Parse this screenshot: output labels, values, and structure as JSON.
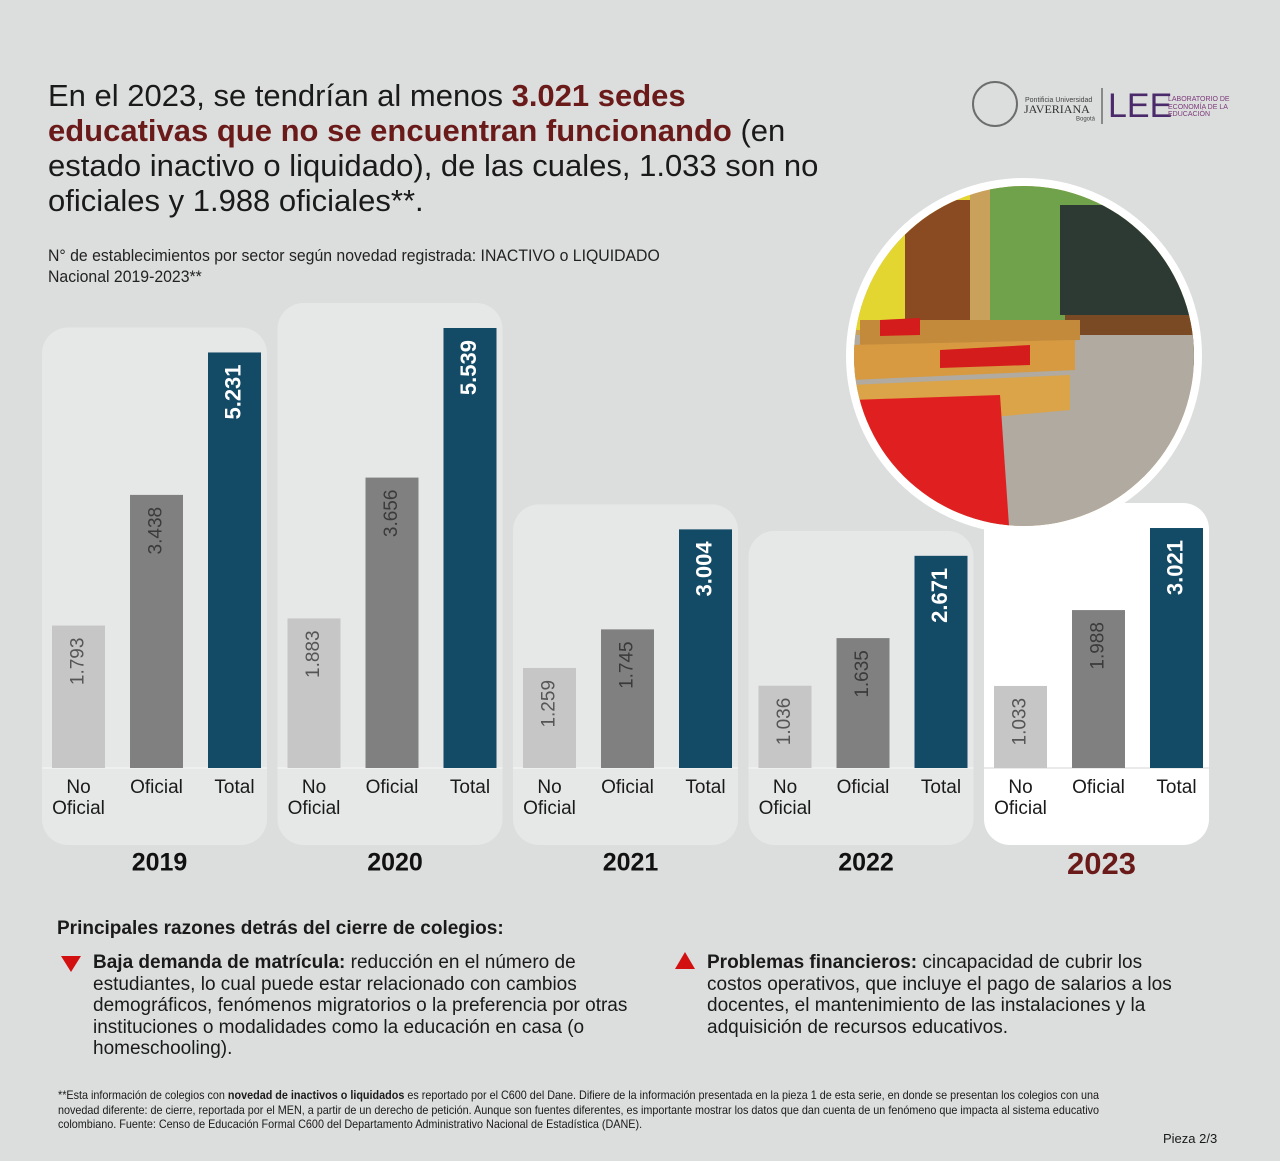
{
  "title_parts": [
    "En el 2023, se tendrían al menos ",
    "3.021 sedes educativas que no se encuentran funcionando",
    " (en estado inactivo o liquidado), de las cuales, 1.033 son no oficiales y 1.988 oficiales**."
  ],
  "logo": {
    "university": "Pontificia Universidad",
    "name": "JAVERIANA",
    "city": "Bogotá",
    "lab": "LEE",
    "lab_name": "LABORATORIO DE ECONOMÍA DE LA EDUCACIÓN"
  },
  "chart_data": {
    "type": "bar",
    "subtitle": [
      "N° de establecimientos por sector según novedad registrada: INACTIVO o LIQUIDADO",
      "Nacional 2019-2023**"
    ],
    "categories": [
      "2019",
      "2020",
      "2021",
      "2022",
      "2023"
    ],
    "series": [
      {
        "name": "No Oficial",
        "color": "#c6c6c6",
        "values": [
          1793,
          1883,
          1259,
          1036,
          1033
        ],
        "value_labels": [
          "1.793",
          "1.883",
          "1.259",
          "1.036",
          "1.033"
        ]
      },
      {
        "name": "Oficial",
        "color": "#808080",
        "values": [
          3438,
          3656,
          1745,
          1635,
          1988
        ],
        "value_labels": [
          "3.438",
          "3.656",
          "1.745",
          "1.635",
          "1.988"
        ]
      },
      {
        "name": "Total",
        "color": "#134a66",
        "values": [
          5231,
          5539,
          3004,
          2671,
          3021
        ],
        "value_labels": [
          "5.231",
          "5.539",
          "3.004",
          "2.671",
          "3.021"
        ]
      }
    ]
  },
  "reasons": {
    "title": "Principales razones detrás del cierre de colegios:",
    "items": [
      {
        "lead": "Baja demanda de matrícula:",
        "text": " reducción en el número de estudiantes, lo cual puede estar relacionado con cambios demográficos, fenómenos migratorios o la preferencia por otras instituciones o modalidades como la educación en casa (o homeschooling)."
      },
      {
        "lead": "Problemas financieros:",
        "text": " cincapacidad de cubrir los costos operativos, que incluye el pago de salarios a los docentes, el mantenimiento de las instalaciones y la adquisición de recursos educativos."
      }
    ]
  },
  "footnote": [
    "**Esta información de colegios con ",
    "novedad de inactivos o liquidados",
    " es reportado por el C600 del Dane. Difiere de la información presentada en la pieza 1 de esta serie, en donde se presentan los colegios con una novedad diferente: de cierre, reportada por el MEN, a partir de un derecho de petición. Aunque son fuentes diferentes, es importante mostrar los datos que dan cuenta de un fenómeno que impacta al sistema educativo colombiano.          Fuente: Censo de Educación Formal C600  del Departamento Administrativo Nacional de Estadística (DANE)."
  ],
  "page": "Pieza 2/3"
}
